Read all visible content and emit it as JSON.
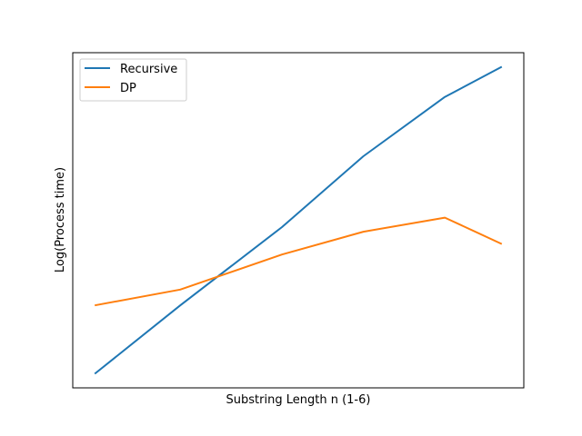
{
  "chart_data": {
    "type": "line",
    "title": "",
    "xlabel": "Substring Length n (1-6)",
    "ylabel": "Log(Process time)",
    "x_ticks_shown": false,
    "y_ticks_shown": false,
    "grid": false,
    "legend_position": "top-left",
    "x": [
      1,
      2,
      3,
      4,
      5,
      6
    ],
    "xlim": [
      0.73,
      6.27
    ],
    "ylim": [
      -5.3,
      4.25
    ],
    "series": [
      {
        "name": "Recursive",
        "color": "#1f77b4",
        "x": [
          1.0,
          2.05,
          3.3,
          4.3,
          5.3,
          6.0
        ],
        "values": [
          -4.9,
          -2.95,
          -0.72,
          1.3,
          2.99,
          3.85
        ]
      },
      {
        "name": "DP",
        "color": "#ff7f0e",
        "x": [
          1.0,
          2.05,
          3.3,
          4.3,
          5.3,
          6.0
        ],
        "values": [
          -2.95,
          -2.5,
          -1.5,
          -0.85,
          -0.45,
          -1.2
        ]
      }
    ]
  }
}
